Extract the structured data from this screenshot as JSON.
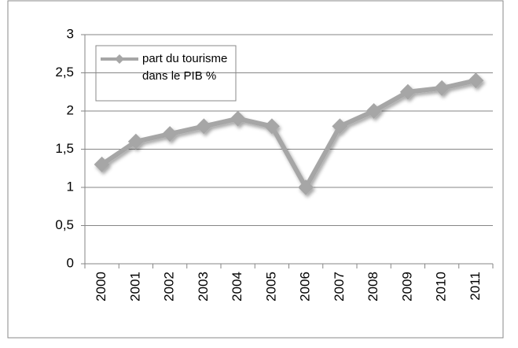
{
  "chart_data": {
    "type": "line",
    "categories": [
      "2000",
      "2001",
      "2002",
      "2003",
      "2004",
      "2005",
      "2006",
      "2007",
      "2008",
      "2009",
      "2010",
      "2011"
    ],
    "series": [
      {
        "name": "part du tourisme dans le PIB %",
        "color": "#a6a6a6",
        "values": [
          1.3,
          1.6,
          1.7,
          1.8,
          1.9,
          1.8,
          1.0,
          1.8,
          2.0,
          2.25,
          2.3,
          2.4
        ]
      }
    ],
    "ylim": [
      0,
      3
    ],
    "yticks": [
      0,
      {
        "value": 0.5,
        "label": "0,5"
      },
      1,
      {
        "value": 1.5,
        "label": "1,5"
      },
      2,
      {
        "value": 2.5,
        "label": "2,5"
      },
      3
    ],
    "grid": true,
    "legend": "top-left"
  }
}
